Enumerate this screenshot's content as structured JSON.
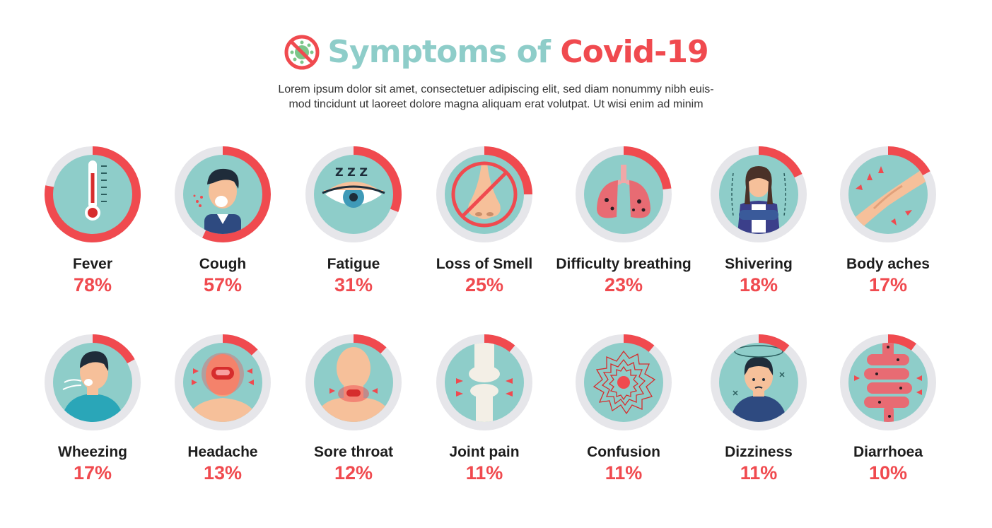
{
  "header": {
    "title_part1": "Symptoms of",
    "title_part2": "Covid-19",
    "subtitle_line1": "Lorem ipsum dolor sit amet, consectetuer adipiscing elit, sed diam nonummy nibh euis-",
    "subtitle_line2": "mod tincidunt ut laoreet dolore magna aliquam erat volutpat. Ut wisi enim ad minim",
    "logo_icon": "no-virus-icon"
  },
  "colors": {
    "teal": "#8ecdc9",
    "red": "#f04a4f",
    "ring_gray": "#e6e6ea"
  },
  "chart_data": {
    "type": "bar",
    "categories": [
      "Fever",
      "Cough",
      "Fatigue",
      "Loss of Smell",
      "Difficulty breathing",
      "Shivering",
      "Body aches",
      "Wheezing",
      "Headache",
      "Sore throat",
      "Joint pain",
      "Confusion",
      "Dizziness",
      "Diarrhoea"
    ],
    "values": [
      78,
      57,
      31,
      25,
      23,
      18,
      17,
      17,
      13,
      12,
      11,
      11,
      11,
      10
    ]
  },
  "symptoms": [
    {
      "name": "Fever",
      "pct": "78%",
      "value": 78,
      "icon": "thermometer-icon"
    },
    {
      "name": "Cough",
      "pct": "57%",
      "value": 57,
      "icon": "coughing-man-icon"
    },
    {
      "name": "Fatigue",
      "pct": "31%",
      "value": 31,
      "icon": "sleepy-eye-icon"
    },
    {
      "name": "Loss of Smell",
      "pct": "25%",
      "value": 25,
      "icon": "crossed-nose-icon"
    },
    {
      "name": "Difficulty breathing",
      "pct": "23%",
      "value": 23,
      "icon": "lungs-icon"
    },
    {
      "name": "Shivering",
      "pct": "18%",
      "value": 18,
      "icon": "shivering-woman-icon"
    },
    {
      "name": "Body aches",
      "pct": "17%",
      "value": 17,
      "icon": "aching-arm-icon"
    },
    {
      "name": "Wheezing",
      "pct": "17%",
      "value": 17,
      "icon": "wheezing-man-icon"
    },
    {
      "name": "Headache",
      "pct": "13%",
      "value": 13,
      "icon": "headache-icon"
    },
    {
      "name": "Sore throat",
      "pct": "12%",
      "value": 12,
      "icon": "sore-throat-icon"
    },
    {
      "name": "Joint pain",
      "pct": "11%",
      "value": 11,
      "icon": "knee-joint-icon"
    },
    {
      "name": "Confusion",
      "pct": "11%",
      "value": 11,
      "icon": "confusion-scribble-icon"
    },
    {
      "name": "Dizziness",
      "pct": "11%",
      "value": 11,
      "icon": "dizzy-man-icon"
    },
    {
      "name": "Diarrhoea",
      "pct": "10%",
      "value": 10,
      "icon": "intestine-icon"
    }
  ]
}
